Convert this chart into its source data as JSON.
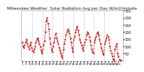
{
  "title": "Milwaukee Weather  Solar Radiation Avg per Day W/m2/minute",
  "title_fontsize": 4.2,
  "background_color": "#ffffff",
  "plot_bg_color": "#ffffff",
  "line_color": "#cc0000",
  "grid_color": "#aaaaaa",
  "ylim": [
    0,
    350
  ],
  "yticks": [
    50,
    100,
    150,
    200,
    250,
    300,
    350
  ],
  "ytick_fontsize": 3.5,
  "xtick_fontsize": 2.8,
  "values": [
    130,
    100,
    90,
    110,
    130,
    150,
    120,
    100,
    80,
    110,
    130,
    90,
    70,
    60,
    80,
    100,
    130,
    150,
    160,
    140,
    120,
    100,
    70,
    50,
    80,
    110,
    140,
    200,
    280,
    300,
    260,
    220,
    160,
    120,
    80,
    60,
    100,
    130,
    160,
    190,
    160,
    140,
    120,
    90,
    70,
    50,
    30,
    20,
    80,
    120,
    150,
    180,
    200,
    220,
    210,
    190,
    160,
    130,
    90,
    60,
    150,
    170,
    200,
    220,
    240,
    210,
    180,
    150,
    130,
    110,
    90,
    70,
    110,
    130,
    150,
    180,
    200,
    190,
    170,
    140,
    110,
    80,
    60,
    50,
    130,
    150,
    170,
    190,
    200,
    180,
    150,
    120,
    90,
    70,
    50,
    40,
    120,
    140,
    160,
    180,
    170,
    150,
    100,
    70,
    50,
    30,
    10,
    5,
    80,
    100,
    120,
    50,
    30,
    10,
    5,
    3
  ],
  "vgrid_indices": [
    11.5,
    23.5,
    35.5,
    47.5,
    59.5,
    71.5,
    83.5,
    95.5
  ],
  "n_points": 116
}
